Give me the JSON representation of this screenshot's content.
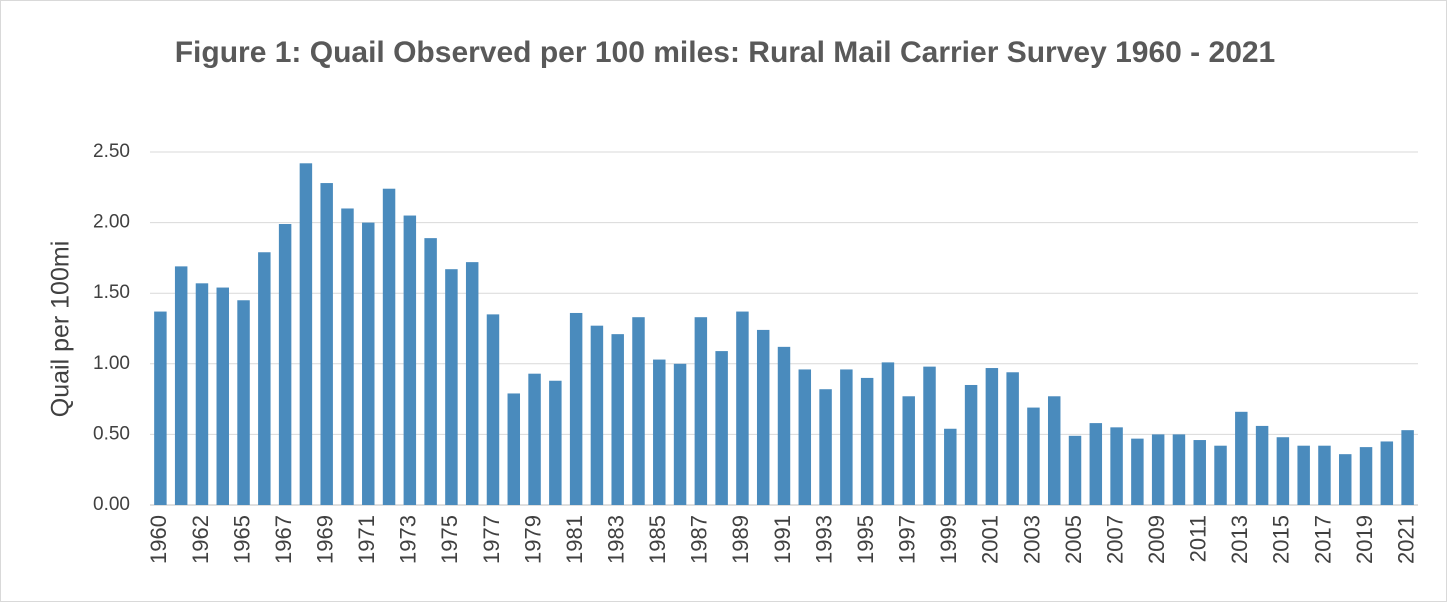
{
  "chart_data": {
    "type": "bar",
    "title": "Figure 1: Quail Observed per 100 miles: Rural Mail Carrier Survey 1960 - 2021",
    "y_label": "Quail per 100mi",
    "categories": [
      "1960",
      null,
      "1962",
      null,
      "1965",
      null,
      "1967",
      null,
      "1969",
      null,
      "1971",
      null,
      "1973",
      null,
      "1975",
      null,
      "1977",
      null,
      "1979",
      null,
      "1981",
      null,
      "1983",
      null,
      "1985",
      null,
      "1987",
      null,
      "1989",
      null,
      "1991",
      null,
      "1993",
      null,
      "1995",
      null,
      "1997",
      null,
      "1999",
      null,
      "2001",
      null,
      "2003",
      null,
      "2005",
      null,
      "2007",
      null,
      "2009",
      null,
      "2011",
      null,
      "2013",
      null,
      "2015",
      null,
      "2017",
      null,
      "2019",
      null,
      "2021"
    ],
    "values": [
      1.37,
      1.69,
      1.57,
      1.54,
      1.45,
      1.79,
      1.99,
      2.42,
      2.28,
      2.1,
      2.0,
      2.24,
      2.05,
      1.89,
      1.67,
      1.72,
      1.35,
      0.79,
      0.93,
      0.88,
      1.36,
      1.27,
      1.21,
      1.33,
      1.03,
      1.0,
      1.33,
      1.09,
      1.37,
      1.24,
      1.12,
      0.96,
      0.82,
      0.96,
      0.9,
      1.01,
      0.77,
      0.98,
      0.54,
      0.85,
      0.97,
      0.94,
      0.69,
      0.77,
      0.49,
      0.58,
      0.55,
      0.47,
      0.5,
      0.5,
      0.46,
      0.42,
      0.66,
      0.56,
      0.48,
      0.42,
      0.42,
      0.36,
      0.41,
      0.45,
      0.53
    ],
    "color": "#4a8bbd",
    "ylim": [
      0,
      2.5
    ],
    "yticks": [
      {
        "value": 0,
        "label": "0.00"
      },
      {
        "value": 0.5,
        "label": "0.50"
      },
      {
        "value": 1,
        "label": "1.00"
      },
      {
        "value": 1.5,
        "label": "1.50"
      },
      {
        "value": 2,
        "label": "2.00"
      },
      {
        "value": 2.5,
        "label": "2.50"
      }
    ],
    "grid": true
  }
}
